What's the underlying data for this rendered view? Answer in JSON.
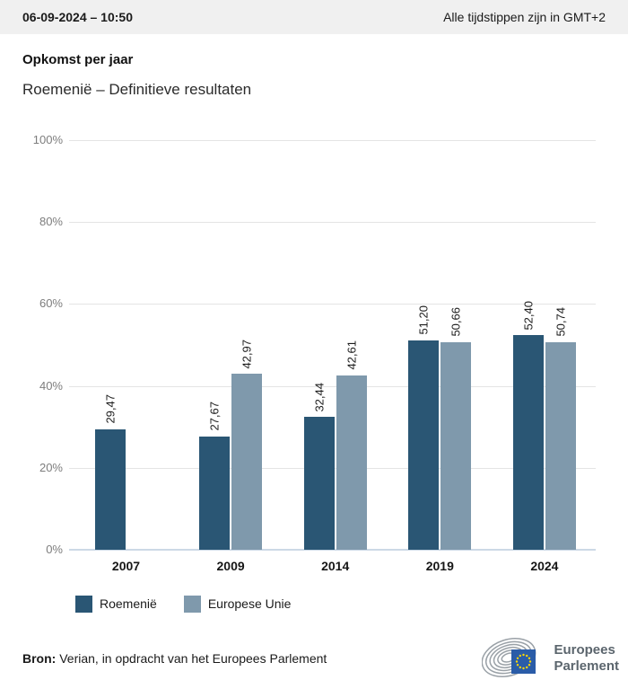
{
  "header": {
    "date": "06-09-2024 – 10:50",
    "timezone_note": "Alle tijdstippen zijn in GMT+2"
  },
  "title": "Opkomst per jaar",
  "subtitle": "Roemenië – Definitieve resultaten",
  "chart_data": {
    "type": "bar",
    "title": "Opkomst per jaar",
    "subtitle": "Roemenië – Definitieve resultaten",
    "categories": [
      "2007",
      "2009",
      "2014",
      "2019",
      "2024"
    ],
    "series": [
      {
        "name": "Roemenië",
        "color": "#2a5674",
        "values": [
          29.47,
          27.67,
          32.44,
          51.2,
          52.4
        ],
        "labels": [
          "29,47",
          "27,67",
          "32,44",
          "51,20",
          "52,40"
        ]
      },
      {
        "name": "Europese Unie",
        "color": "#7f99ac",
        "values": [
          null,
          42.97,
          42.61,
          50.66,
          50.74
        ],
        "labels": [
          null,
          "42,97",
          "42,61",
          "50,66",
          "50,74"
        ]
      }
    ],
    "xlabel": "",
    "ylabel": "",
    "ylim": [
      0,
      100
    ],
    "yticks": [
      {
        "value": 0,
        "label": "0%"
      },
      {
        "value": 20,
        "label": "20%"
      },
      {
        "value": 40,
        "label": "40%"
      },
      {
        "value": 60,
        "label": "60%"
      },
      {
        "value": 80,
        "label": "80%"
      },
      {
        "value": 100,
        "label": "100%"
      }
    ],
    "grid": true,
    "legend_position": "bottom"
  },
  "footer": {
    "source_label": "Bron:",
    "source_text": " Verian, in opdracht van het Europees Parlement"
  },
  "logo": {
    "line1": "Europees",
    "line2": "Parlement"
  }
}
